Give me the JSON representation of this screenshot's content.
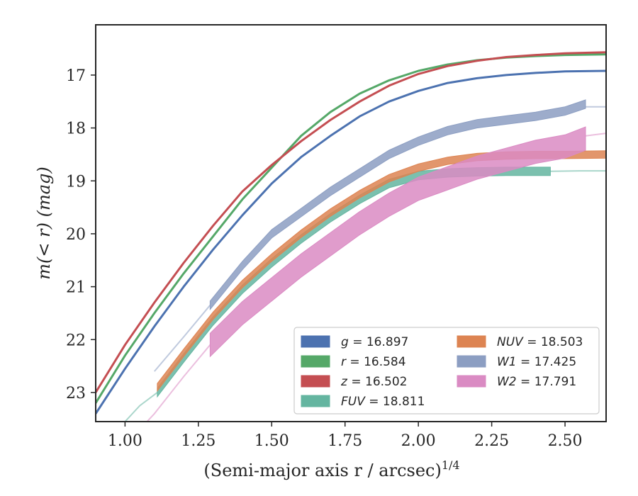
{
  "chart_data": {
    "type": "line",
    "xlabel": "(Semi-major axis r / arcsec)",
    "xlabel_exponent": "1/4",
    "ylabel": "m(< r) (mag)",
    "xlim": [
      0.9,
      2.64
    ],
    "ylim": [
      23.55,
      16.05
    ],
    "y_inverted": true,
    "grid": false,
    "legend_position": "lower-right",
    "x_ticks": [
      "1.00",
      "1.25",
      "1.50",
      "1.75",
      "2.00",
      "2.25",
      "2.50"
    ],
    "y_ticks": [
      "17",
      "18",
      "19",
      "20",
      "21",
      "22",
      "23"
    ],
    "series": [
      {
        "name": "g = 16.897",
        "var": "g",
        "value": "16.897",
        "color": "#4c72b0",
        "kind": "line",
        "x": [
          0.9,
          1.0,
          1.1,
          1.2,
          1.3,
          1.4,
          1.5,
          1.6,
          1.7,
          1.8,
          1.9,
          2.0,
          2.1,
          2.2,
          2.3,
          2.4,
          2.5,
          2.64
        ],
        "y": [
          23.4,
          22.55,
          21.75,
          21.0,
          20.3,
          19.65,
          19.05,
          18.55,
          18.15,
          17.78,
          17.5,
          17.3,
          17.15,
          17.06,
          17.0,
          16.96,
          16.93,
          16.92
        ],
        "ghost_x": [],
        "ghost_y": []
      },
      {
        "name": "r = 16.584",
        "var": "r",
        "value": "16.584",
        "color": "#55a868",
        "kind": "line",
        "x": [
          0.9,
          1.0,
          1.1,
          1.2,
          1.3,
          1.4,
          1.5,
          1.6,
          1.7,
          1.8,
          1.9,
          2.0,
          2.1,
          2.2,
          2.3,
          2.4,
          2.5,
          2.64
        ],
        "y": [
          23.2,
          22.3,
          21.5,
          20.75,
          20.05,
          19.35,
          18.75,
          18.15,
          17.7,
          17.35,
          17.1,
          16.92,
          16.8,
          16.72,
          16.67,
          16.64,
          16.62,
          16.61
        ],
        "ghost_x": [],
        "ghost_y": []
      },
      {
        "name": "z = 16.502",
        "var": "z",
        "value": "16.502",
        "color": "#c44e52",
        "kind": "line",
        "x": [
          0.9,
          1.0,
          1.1,
          1.2,
          1.3,
          1.4,
          1.5,
          1.6,
          1.7,
          1.8,
          1.9,
          2.0,
          2.1,
          2.2,
          2.3,
          2.4,
          2.5,
          2.64
        ],
        "y": [
          23.0,
          22.1,
          21.3,
          20.55,
          19.85,
          19.2,
          18.7,
          18.25,
          17.85,
          17.5,
          17.2,
          16.98,
          16.83,
          16.73,
          16.66,
          16.62,
          16.59,
          16.57
        ],
        "ghost_x": [],
        "ghost_y": []
      },
      {
        "name": "FUV = 18.811",
        "var": "FUV",
        "value": "18.811",
        "color": "#64b5a0",
        "kind": "band",
        "x": [
          1.11,
          1.2,
          1.3,
          1.4,
          1.5,
          1.6,
          1.7,
          1.8,
          1.9,
          2.0,
          2.1,
          2.2,
          2.3,
          2.45
        ],
        "y": [
          23.0,
          22.35,
          21.65,
          21.05,
          20.55,
          20.1,
          19.7,
          19.35,
          19.05,
          18.9,
          18.85,
          18.83,
          18.82,
          18.82
        ],
        "band_half_width": 0.08,
        "ghost_x": [
          0.95,
          1.0,
          1.05,
          1.11,
          2.45,
          2.55,
          2.64
        ],
        "ghost_y": [
          23.9,
          23.55,
          23.25,
          23.0,
          18.82,
          18.81,
          18.81
        ]
      },
      {
        "name": "NUV = 18.503",
        "var": "NUV",
        "value": "18.503",
        "color": "#dd8452",
        "kind": "band",
        "x": [
          1.11,
          1.2,
          1.3,
          1.4,
          1.5,
          1.6,
          1.7,
          1.8,
          1.9,
          2.0,
          2.1,
          2.2,
          2.3,
          2.4,
          2.5,
          2.64
        ],
        "y": [
          22.9,
          22.25,
          21.55,
          20.95,
          20.45,
          20.0,
          19.6,
          19.25,
          18.95,
          18.75,
          18.62,
          18.55,
          18.52,
          18.51,
          18.51,
          18.5
        ],
        "band_half_width": 0.07,
        "ghost_x": [],
        "ghost_y": []
      },
      {
        "name": "W1 = 17.425",
        "var": "W1",
        "value": "17.425",
        "color": "#8c9ec2",
        "kind": "band",
        "x": [
          1.29,
          1.4,
          1.5,
          1.6,
          1.7,
          1.8,
          1.9,
          2.0,
          2.1,
          2.2,
          2.3,
          2.4,
          2.5,
          2.57
        ],
        "y": [
          21.35,
          20.6,
          20.0,
          19.6,
          19.2,
          18.85,
          18.5,
          18.25,
          18.05,
          17.92,
          17.85,
          17.78,
          17.68,
          17.55
        ],
        "band_half_width": 0.08,
        "ghost_x": [
          1.1,
          1.2,
          1.29,
          2.57,
          2.64
        ],
        "ghost_y": [
          22.6,
          21.95,
          21.35,
          17.6,
          17.6
        ]
      },
      {
        "name": "W2 = 17.791",
        "var": "W2",
        "value": "17.791",
        "color": "#da8bc3",
        "kind": "band",
        "x": [
          1.29,
          1.4,
          1.5,
          1.6,
          1.7,
          1.8,
          1.9,
          2.0,
          2.1,
          2.2,
          2.3,
          2.4,
          2.5,
          2.57
        ],
        "y": [
          22.1,
          21.5,
          21.05,
          20.6,
          20.2,
          19.8,
          19.45,
          19.15,
          18.95,
          18.75,
          18.6,
          18.45,
          18.35,
          18.2
        ],
        "band_half_width": 0.22,
        "ghost_x": [
          1.0,
          1.1,
          1.2,
          1.29,
          2.57,
          2.64
        ],
        "ghost_y": [
          24.0,
          23.4,
          22.7,
          22.1,
          18.15,
          18.1
        ]
      }
    ],
    "legend_columns": [
      [
        "g",
        "r",
        "z",
        "FUV"
      ],
      [
        "NUV",
        "W1",
        "W2"
      ]
    ]
  }
}
